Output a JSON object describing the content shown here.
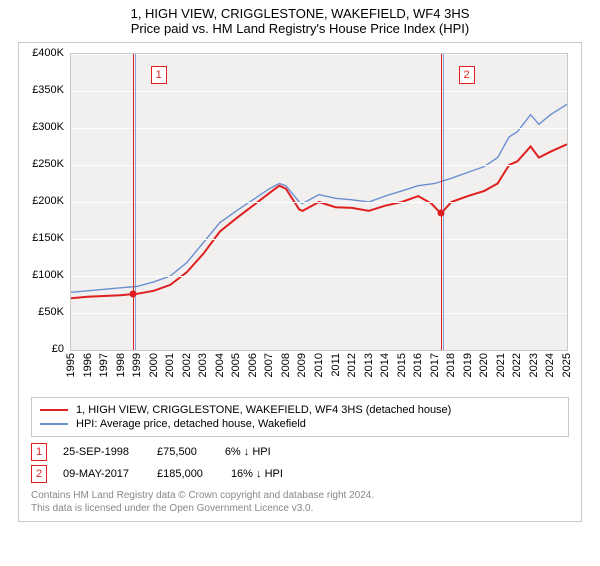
{
  "title": "1, HIGH VIEW, CRIGGLESTONE, WAKEFIELD, WF4 3HS",
  "subtitle": "Price paid vs. HM Land Registry's House Price Index (HPI)",
  "chart": {
    "type": "line",
    "background_color": "#f2efef",
    "grid_color": "#ffffff",
    "border_color": "#c8c8c8",
    "ylim": [
      0,
      400000
    ],
    "ytick_step": 50000,
    "yticks_labels": [
      "£0",
      "£50K",
      "£100K",
      "£150K",
      "£200K",
      "£250K",
      "£300K",
      "£350K",
      "£400K"
    ],
    "xlim": [
      1995,
      2025
    ],
    "xticks": [
      1995,
      1996,
      1997,
      1998,
      1999,
      2000,
      2001,
      2002,
      2003,
      2004,
      2005,
      2006,
      2007,
      2008,
      2009,
      2010,
      2011,
      2012,
      2013,
      2014,
      2015,
      2016,
      2017,
      2018,
      2019,
      2020,
      2021,
      2022,
      2023,
      2024,
      2025
    ],
    "series": [
      {
        "name": "red",
        "color": "#e02020",
        "width": 2,
        "points": [
          [
            1995,
            70000
          ],
          [
            1996,
            72000
          ],
          [
            1997,
            73000
          ],
          [
            1998,
            74000
          ],
          [
            1998.73,
            75500
          ],
          [
            1999,
            76000
          ],
          [
            2000,
            80000
          ],
          [
            2001,
            88000
          ],
          [
            2002,
            105000
          ],
          [
            2003,
            130000
          ],
          [
            2004,
            160000
          ],
          [
            2005,
            178000
          ],
          [
            2006,
            195000
          ],
          [
            2007,
            212000
          ],
          [
            2007.6,
            222000
          ],
          [
            2008,
            218000
          ],
          [
            2008.8,
            190000
          ],
          [
            2009,
            188000
          ],
          [
            2010,
            200000
          ],
          [
            2011,
            193000
          ],
          [
            2012,
            192000
          ],
          [
            2013,
            188000
          ],
          [
            2014,
            195000
          ],
          [
            2015,
            200000
          ],
          [
            2016,
            208000
          ],
          [
            2016.8,
            198000
          ],
          [
            2017.35,
            185000
          ],
          [
            2017.6,
            190000
          ],
          [
            2018,
            200000
          ],
          [
            2019,
            208000
          ],
          [
            2020,
            215000
          ],
          [
            2020.8,
            225000
          ],
          [
            2021.5,
            250000
          ],
          [
            2022,
            255000
          ],
          [
            2022.8,
            275000
          ],
          [
            2023.3,
            260000
          ],
          [
            2024,
            268000
          ],
          [
            2025,
            278000
          ]
        ]
      },
      {
        "name": "blue",
        "color": "#6a90d0",
        "width": 1.4,
        "points": [
          [
            1995,
            78000
          ],
          [
            1996,
            80000
          ],
          [
            1997,
            82000
          ],
          [
            1998,
            84000
          ],
          [
            1999,
            86000
          ],
          [
            2000,
            92000
          ],
          [
            2001,
            100000
          ],
          [
            2002,
            118000
          ],
          [
            2003,
            145000
          ],
          [
            2004,
            172000
          ],
          [
            2005,
            188000
          ],
          [
            2006,
            203000
          ],
          [
            2007,
            218000
          ],
          [
            2007.6,
            225000
          ],
          [
            2008,
            222000
          ],
          [
            2008.8,
            200000
          ],
          [
            2009,
            198000
          ],
          [
            2010,
            210000
          ],
          [
            2011,
            205000
          ],
          [
            2012,
            203000
          ],
          [
            2013,
            200000
          ],
          [
            2014,
            208000
          ],
          [
            2015,
            215000
          ],
          [
            2016,
            222000
          ],
          [
            2017,
            225000
          ],
          [
            2018,
            232000
          ],
          [
            2019,
            240000
          ],
          [
            2020,
            248000
          ],
          [
            2020.8,
            260000
          ],
          [
            2021.5,
            288000
          ],
          [
            2022,
            295000
          ],
          [
            2022.8,
            318000
          ],
          [
            2023.3,
            305000
          ],
          [
            2024,
            318000
          ],
          [
            2025,
            332000
          ]
        ]
      }
    ],
    "markers": [
      {
        "id": "1",
        "x": 1998.73,
        "y": 75500,
        "box_offset_x": 18
      },
      {
        "id": "2",
        "x": 2017.35,
        "y": 185000,
        "box_offset_x": 18
      }
    ]
  },
  "legend": [
    {
      "color": "#e02020",
      "label": "1, HIGH VIEW, CRIGGLESTONE, WAKEFIELD, WF4 3HS (detached house)"
    },
    {
      "color": "#6a90d0",
      "label": "HPI: Average price, detached house, Wakefield"
    }
  ],
  "rows": [
    {
      "id": "1",
      "date": "25-SEP-1998",
      "price": "£75,500",
      "diff": "6% ↓ HPI"
    },
    {
      "id": "2",
      "date": "09-MAY-2017",
      "price": "£185,000",
      "diff": "16% ↓ HPI"
    }
  ],
  "footnote1": "Contains HM Land Registry data © Crown copyright and database right 2024.",
  "footnote2": "This data is licensed under the Open Government Licence v3.0."
}
